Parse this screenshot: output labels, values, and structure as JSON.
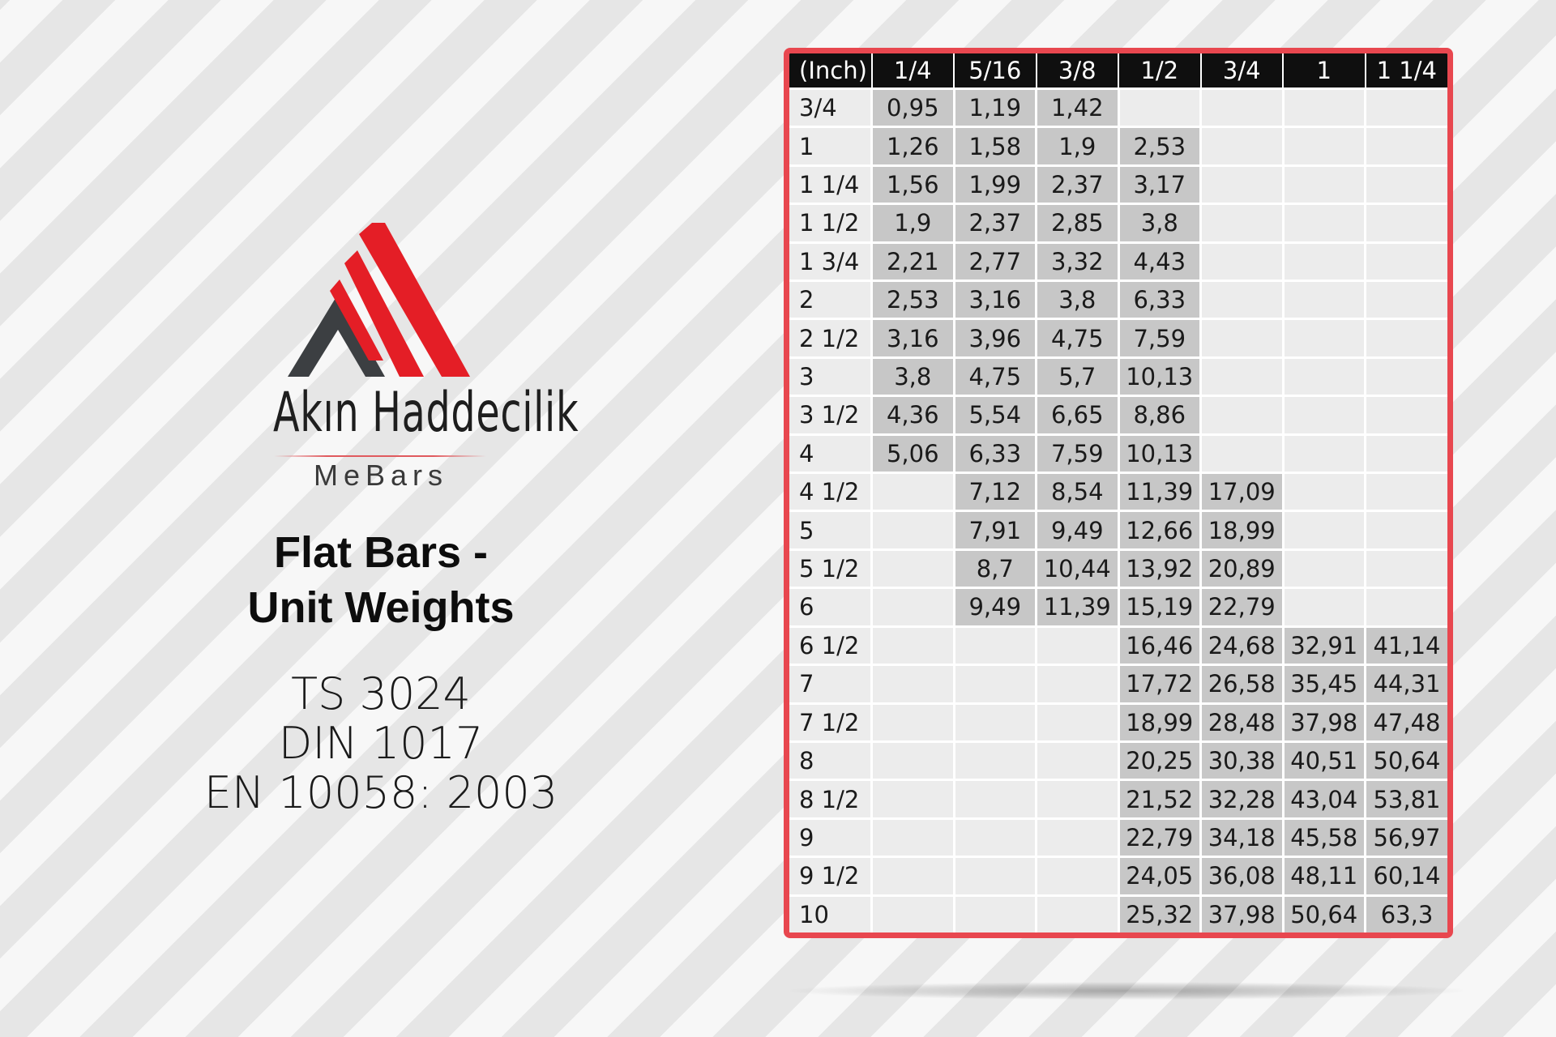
{
  "brand": {
    "name": "Akın Haddecilik",
    "sub": "MeBars",
    "colors": {
      "red": "#e41e26",
      "dark": "#3c3f42"
    }
  },
  "title": {
    "line1": "Flat Bars -",
    "line2": "Unit Weights"
  },
  "standards": [
    "TS 3024",
    "DIN 1017",
    "EN 10058: 2003"
  ],
  "table": {
    "headers": [
      "(Inch)",
      "1/4",
      "5/16",
      "3/8",
      "1/2",
      "3/4",
      "1",
      "1 1/4"
    ],
    "rows": [
      [
        "3/4",
        "0,95",
        "1,19",
        "1,42",
        "",
        "",
        "",
        ""
      ],
      [
        "1",
        "1,26",
        "1,58",
        "1,9",
        "2,53",
        "",
        "",
        ""
      ],
      [
        "1 1/4",
        "1,56",
        "1,99",
        "2,37",
        "3,17",
        "",
        "",
        ""
      ],
      [
        "1 1/2",
        "1,9",
        "2,37",
        "2,85",
        "3,8",
        "",
        "",
        ""
      ],
      [
        "1 3/4",
        "2,21",
        "2,77",
        "3,32",
        "4,43",
        "",
        "",
        ""
      ],
      [
        "2",
        "2,53",
        "3,16",
        "3,8",
        "6,33",
        "",
        "",
        ""
      ],
      [
        "2 1/2",
        "3,16",
        "3,96",
        "4,75",
        "7,59",
        "",
        "",
        ""
      ],
      [
        "3",
        "3,8",
        "4,75",
        "5,7",
        "10,13",
        "",
        "",
        ""
      ],
      [
        "3 1/2",
        "4,36",
        "5,54",
        "6,65",
        "8,86",
        "",
        "",
        ""
      ],
      [
        "4",
        "5,06",
        "6,33",
        "7,59",
        "10,13",
        "",
        "",
        ""
      ],
      [
        "4 1/2",
        "",
        "7,12",
        "8,54",
        "11,39",
        "17,09",
        "",
        ""
      ],
      [
        "5",
        "",
        "7,91",
        "9,49",
        "12,66",
        "18,99",
        "",
        ""
      ],
      [
        "5 1/2",
        "",
        "8,7",
        "10,44",
        "13,92",
        "20,89",
        "",
        ""
      ],
      [
        "6",
        "",
        "9,49",
        "11,39",
        "15,19",
        "22,79",
        "",
        ""
      ],
      [
        "6 1/2",
        "",
        "",
        "",
        "16,46",
        "24,68",
        "32,91",
        "41,14"
      ],
      [
        "7",
        "",
        "",
        "",
        "17,72",
        "26,58",
        "35,45",
        "44,31"
      ],
      [
        "7 1/2",
        "",
        "",
        "",
        "18,99",
        "28,48",
        "37,98",
        "47,48"
      ],
      [
        "8",
        "",
        "",
        "",
        "20,25",
        "30,38",
        "40,51",
        "50,64"
      ],
      [
        "8 1/2",
        "",
        "",
        "",
        "21,52",
        "32,28",
        "43,04",
        "53,81"
      ],
      [
        "9",
        "",
        "",
        "",
        "22,79",
        "34,18",
        "45,58",
        "56,97"
      ],
      [
        "9 1/2",
        "",
        "",
        "",
        "24,05",
        "36,08",
        "48,11",
        "60,14"
      ],
      [
        "10",
        "",
        "",
        "",
        "25,32",
        "37,98",
        "50,64",
        "63,3"
      ]
    ],
    "colors": {
      "frame": "#e8474f",
      "header_bg": "#0f0f0f",
      "filled_cell": "#c7c7c7",
      "empty_cell": "#ececec"
    }
  }
}
